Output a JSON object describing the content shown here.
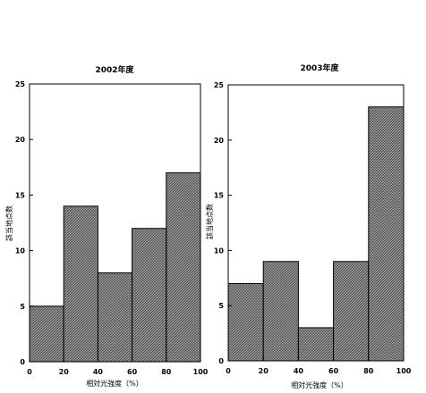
{
  "chart_data": [
    {
      "type": "bar",
      "title": "2002年度",
      "xlabel": "相対光強度（%）",
      "ylabel": "",
      "bin_edges": [
        0,
        20,
        40,
        60,
        80,
        100
      ],
      "values": [
        5,
        14,
        8,
        12,
        17
      ],
      "xlim": [
        0,
        100
      ],
      "ylim": [
        0,
        25
      ],
      "x_ticks": [
        "0",
        "20",
        "40",
        "60",
        "80",
        "100"
      ],
      "y_ticks": [
        "0",
        "5",
        "10",
        "15",
        "20",
        "25"
      ],
      "bar_style": "hatched gray",
      "grid": false
    },
    {
      "type": "bar",
      "title": "2003年度",
      "xlabel": "相対光強度（%）",
      "ylabel": "該当地点数",
      "bin_edges": [
        0,
        20,
        40,
        60,
        80,
        100
      ],
      "values": [
        7,
        9,
        3,
        9,
        23
      ],
      "xlim": [
        0,
        100
      ],
      "ylim": [
        0,
        25
      ],
      "x_ticks": [
        "0",
        "20",
        "40",
        "60",
        "80",
        "100"
      ],
      "y_ticks": [
        "0",
        "5",
        "10",
        "15",
        "20",
        "25"
      ],
      "bar_style": "hatched gray",
      "grid": false
    }
  ],
  "left_ylabel": "該当地点数"
}
